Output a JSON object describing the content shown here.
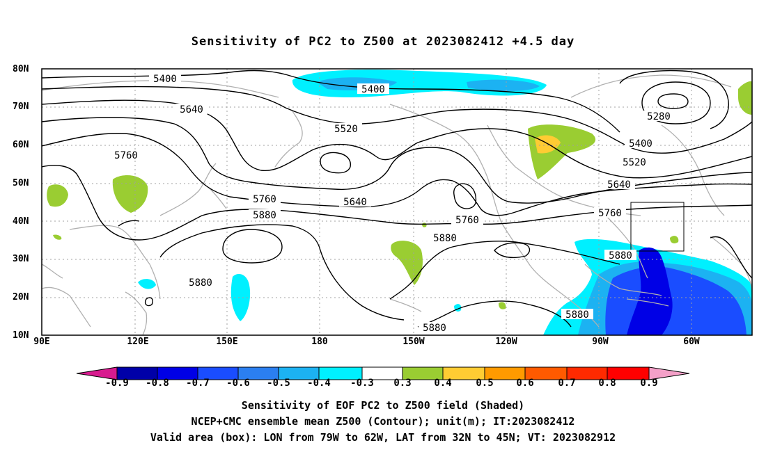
{
  "title": "Sensitivity of PC2 to Z500 at 2023082412 +4.5 day",
  "map": {
    "lat_labels": [
      "80N",
      "70N",
      "60N",
      "50N",
      "40N",
      "30N",
      "20N",
      "10N"
    ],
    "lon_labels": [
      "90E",
      "120E",
      "150E",
      "180",
      "150W",
      "120W",
      "90W",
      "60W"
    ],
    "contour_labels": [
      "5400",
      "5400",
      "5280",
      "5400",
      "5640",
      "5520",
      "5520",
      "5760",
      "5640",
      "5640",
      "5760",
      "5760",
      "5880",
      "5760",
      "5880",
      "5880",
      "5880",
      "5880",
      "5880"
    ],
    "box_label": "Valid area",
    "land_color": "#b0b0b0",
    "contour_color": "#000000"
  },
  "colorbar": {
    "labels": [
      "-0.9",
      "-0.8",
      "-0.7",
      "-0.6",
      "-0.5",
      "-0.4",
      "-0.3",
      "0.3",
      "0.4",
      "0.5",
      "0.6",
      "0.7",
      "0.8",
      "0.9"
    ],
    "colors": [
      "#d81b8f",
      "#0000a8",
      "#0000e6",
      "#1a4dff",
      "#2b7ff0",
      "#1cb2f2",
      "#00f0ff",
      "#ffffff",
      "#9acd32",
      "#ffcc33",
      "#ff9a00",
      "#ff5a00",
      "#ff2a00",
      "#f4a0c8"
    ]
  },
  "captions": [
    "Sensitivity of EOF PC2 to Z500 field (Shaded)",
    "NCEP+CMC ensemble mean Z500 (Contour); unit(m); IT:2023082412",
    "Valid area (box): LON from 79W to 62W, LAT from 32N to 45N; VT: 2023082912"
  ]
}
